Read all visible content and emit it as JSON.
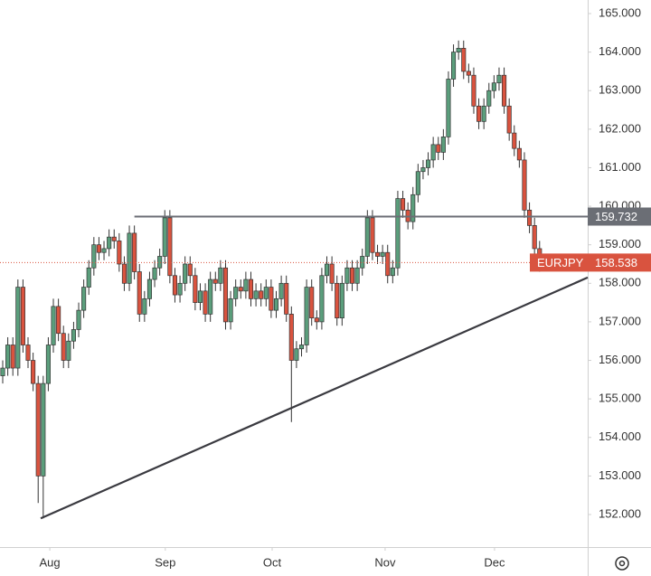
{
  "chart_data": {
    "type": "candlestick",
    "symbol": "EURJPY",
    "up_color": "#5b9e7c",
    "down_color": "#d9533f",
    "border_color": "#333333",
    "xlim": [
      -0.536,
      115.5
    ],
    "ylim": [
      151.155,
      165.352
    ],
    "yticks": [
      {
        "value": 152,
        "label": "152.000"
      },
      {
        "value": 153,
        "label": "153.000"
      },
      {
        "value": 154,
        "label": "154.000"
      },
      {
        "value": 155,
        "label": "155.000"
      },
      {
        "value": 156,
        "label": "156.000"
      },
      {
        "value": 157,
        "label": "157.000"
      },
      {
        "value": 158,
        "label": "158.000"
      },
      {
        "value": 159,
        "label": "159.000"
      },
      {
        "value": 160,
        "label": "160.000"
      },
      {
        "value": 161,
        "label": "161.000"
      },
      {
        "value": 162,
        "label": "162.000"
      },
      {
        "value": 163,
        "label": "163.000"
      },
      {
        "value": 164,
        "label": "164.000"
      },
      {
        "value": 165,
        "label": "165.000"
      }
    ],
    "xticks": [
      {
        "value": 9.3,
        "label": "Aug"
      },
      {
        "value": 32.1,
        "label": "Sep"
      },
      {
        "value": 53.2,
        "label": "Oct"
      },
      {
        "value": 75.5,
        "label": "Nov"
      },
      {
        "value": 97.1,
        "label": "Dec"
      }
    ],
    "open": [
      155.6,
      155.8,
      156.4,
      155.8,
      157.9,
      156.4,
      156.0,
      155.4,
      153.0,
      155.4,
      156.4,
      157.4,
      156.7,
      156.0,
      156.5,
      156.8,
      157.3,
      157.9,
      158.4,
      159.0,
      158.8,
      158.9,
      159.2,
      159.1,
      158.5,
      158.0,
      159.3,
      158.3,
      157.2,
      157.6,
      158.1,
      158.4,
      158.7,
      159.7,
      158.2,
      157.7,
      158.0,
      158.5,
      158.2,
      157.5,
      157.8,
      157.2,
      158.1,
      158.0,
      158.4,
      157.0,
      157.6,
      157.9,
      157.8,
      158.1,
      157.6,
      157.8,
      157.6,
      157.9,
      157.3,
      157.6,
      158.0,
      157.2,
      156.0,
      156.3,
      156.4,
      157.9,
      157.1,
      157.0,
      158.2,
      158.5,
      158.0,
      157.1,
      158.0,
      158.4,
      158.0,
      158.4,
      158.7,
      159.7,
      158.8,
      158.7,
      158.8,
      158.2,
      158.4,
      160.2,
      159.9,
      159.6,
      160.3,
      160.9,
      161.0,
      161.2,
      161.6,
      161.4,
      161.8,
      163.3,
      164.0,
      164.1,
      163.5,
      163.4,
      162.6,
      162.2,
      162.6,
      163.0,
      163.2,
      163.4,
      162.6,
      161.9,
      161.5,
      161.2,
      159.9,
      159.5,
      158.9
    ],
    "high": [
      156.0,
      156.6,
      156.6,
      158.1,
      158.1,
      156.6,
      156.2,
      155.6,
      155.6,
      156.6,
      157.6,
      157.6,
      156.9,
      156.7,
      157.0,
      157.5,
      158.1,
      158.6,
      159.2,
      159.2,
      159.1,
      159.4,
      159.4,
      159.3,
      158.7,
      159.5,
      159.5,
      158.5,
      157.8,
      158.3,
      158.6,
      158.9,
      159.9,
      159.9,
      158.4,
      158.2,
      158.7,
      158.7,
      158.4,
      158.0,
      158.0,
      158.3,
      158.3,
      158.6,
      158.6,
      157.8,
      158.1,
      158.1,
      158.3,
      158.3,
      158.0,
      158.0,
      158.1,
      158.1,
      157.8,
      158.2,
      158.2,
      157.4,
      156.5,
      156.6,
      158.1,
      158.1,
      157.3,
      158.4,
      158.7,
      158.7,
      158.2,
      158.2,
      158.6,
      158.6,
      158.6,
      158.9,
      159.9,
      159.9,
      159.0,
      159.0,
      159.0,
      158.6,
      160.4,
      160.4,
      160.1,
      160.5,
      161.1,
      161.2,
      161.4,
      161.8,
      161.8,
      162.0,
      163.5,
      164.2,
      164.3,
      164.3,
      163.7,
      163.6,
      162.8,
      162.8,
      163.2,
      163.4,
      163.6,
      163.6,
      162.8,
      162.1,
      161.7,
      161.4,
      160.1,
      159.7,
      159.1
    ],
    "low": [
      155.4,
      155.6,
      155.6,
      155.6,
      156.2,
      155.8,
      155.2,
      152.3,
      151.9,
      155.2,
      156.2,
      156.5,
      155.8,
      155.8,
      156.3,
      156.6,
      157.1,
      157.7,
      158.2,
      158.6,
      158.6,
      158.7,
      158.9,
      158.3,
      157.8,
      157.8,
      158.1,
      157.0,
      157.0,
      157.4,
      157.9,
      158.2,
      158.5,
      158.0,
      157.5,
      157.5,
      157.8,
      158.0,
      157.3,
      157.3,
      157.0,
      157.0,
      157.8,
      157.8,
      156.8,
      156.8,
      157.4,
      157.6,
      157.6,
      157.4,
      157.4,
      157.4,
      157.4,
      157.1,
      157.1,
      157.4,
      157.0,
      154.4,
      155.8,
      156.1,
      156.2,
      156.9,
      156.8,
      156.8,
      158.0,
      157.8,
      156.9,
      156.9,
      157.8,
      157.8,
      157.8,
      158.2,
      158.5,
      158.6,
      158.5,
      158.5,
      158.0,
      158.0,
      158.2,
      159.7,
      159.4,
      159.4,
      160.1,
      160.7,
      160.8,
      161.0,
      161.2,
      161.2,
      161.6,
      163.1,
      163.8,
      163.3,
      163.2,
      162.4,
      162.0,
      162.0,
      162.4,
      162.8,
      163.0,
      162.4,
      161.7,
      161.3,
      161.0,
      159.7,
      159.3,
      158.7,
      158.3
    ],
    "close": [
      155.8,
      156.4,
      155.8,
      157.9,
      156.4,
      156.0,
      155.4,
      153.0,
      155.4,
      156.4,
      157.4,
      156.7,
      156.0,
      156.5,
      156.8,
      157.3,
      157.9,
      158.4,
      159.0,
      158.8,
      158.9,
      159.2,
      159.1,
      158.5,
      158.0,
      159.3,
      158.3,
      157.2,
      157.6,
      158.1,
      158.4,
      158.7,
      159.7,
      158.2,
      157.7,
      158.0,
      158.5,
      158.2,
      157.5,
      157.8,
      157.2,
      158.1,
      158.0,
      158.4,
      157.0,
      157.6,
      157.9,
      157.8,
      158.1,
      157.6,
      157.8,
      157.6,
      157.9,
      157.3,
      157.6,
      158.0,
      157.2,
      156.0,
      156.3,
      156.4,
      157.9,
      157.1,
      157.0,
      158.2,
      158.5,
      158.0,
      157.1,
      158.0,
      158.4,
      158.0,
      158.4,
      158.7,
      159.7,
      158.8,
      158.7,
      158.8,
      158.2,
      158.4,
      160.2,
      159.9,
      159.6,
      160.3,
      160.9,
      161.0,
      161.2,
      161.6,
      161.4,
      161.8,
      163.3,
      164.0,
      164.1,
      163.5,
      163.4,
      162.6,
      162.2,
      162.6,
      163.0,
      163.2,
      163.4,
      162.6,
      161.9,
      161.5,
      161.2,
      159.9,
      159.5,
      158.9,
      158.538
    ],
    "last_price": 158.538,
    "level": {
      "value": 159.732,
      "start": 26
    },
    "trendline": {
      "x": [
        7.5,
        115.5
      ],
      "y": [
        151.9,
        158.15
      ]
    }
  }
}
